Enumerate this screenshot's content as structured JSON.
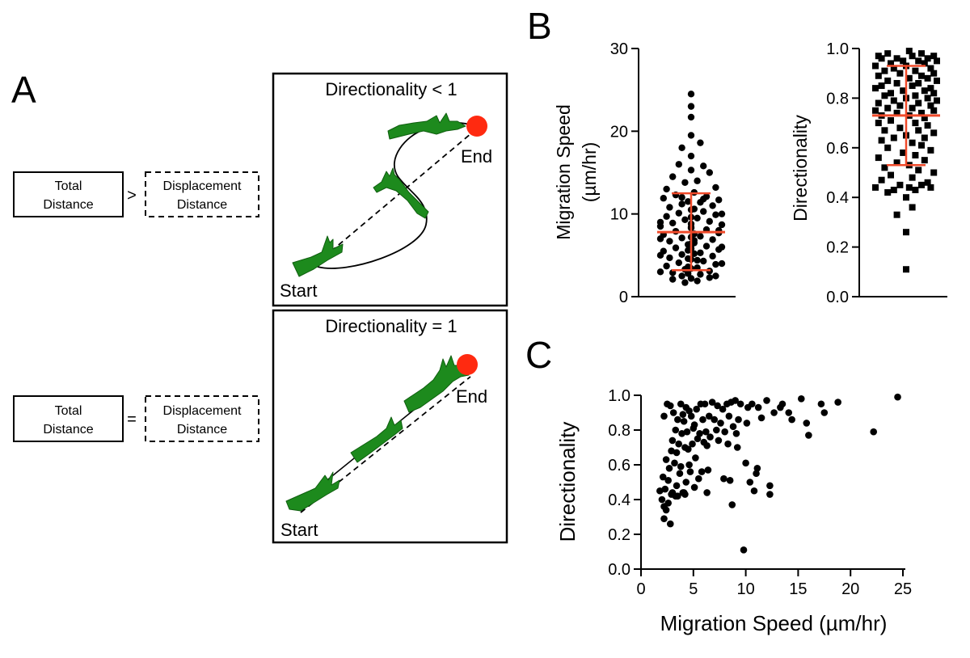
{
  "panels": {
    "a": "A",
    "b": "B",
    "c": "C"
  },
  "schematic": {
    "top": {
      "title": "Directionality < 1",
      "start": "Start",
      "end": "End",
      "left_box": [
        "Total",
        "Distance"
      ],
      "operator": ">",
      "right_box": [
        "Displacement",
        "Distance"
      ]
    },
    "bottom": {
      "title": "Directionality = 1",
      "start": "Start",
      "end": "End",
      "left_box": [
        "Total",
        "Distance"
      ],
      "operator": "=",
      "right_box": [
        "Displacement",
        "Distance"
      ]
    }
  },
  "colors": {
    "cell": "#1d8a1d",
    "cell_stroke": "#0f5e0f",
    "end_dot": "#ff2a10",
    "error_bar": "#f04a2a",
    "points": "#000000"
  },
  "chart_data": [
    {
      "id": "speed",
      "type": "scatter",
      "subtype": "dot-plot",
      "ylabel": [
        "Migration Speed",
        "(µm/hr)"
      ],
      "ylim": [
        0,
        30
      ],
      "yticks": [
        0,
        10,
        20,
        30
      ],
      "yticklabels": [
        "0",
        "10",
        "20",
        "30"
      ],
      "marker": "circle",
      "summary": {
        "mean": 7.8,
        "sd_upper": 12.5,
        "sd_lower": 3.2
      },
      "values": [
        24.5,
        23.0,
        21.7,
        19.5,
        18.6,
        18.0,
        17.0,
        16.0,
        15.8,
        15.3,
        15.0,
        14.5,
        14.0,
        13.8,
        13.2,
        13.0,
        12.6,
        12.3,
        12.1,
        11.9,
        11.7,
        11.4,
        11.2,
        11.0,
        10.8,
        10.5,
        10.3,
        10.1,
        9.9,
        9.7,
        9.5,
        9.3,
        9.1,
        8.9,
        8.7,
        8.5,
        8.3,
        8.1,
        7.9,
        7.7,
        7.5,
        7.3,
        7.1,
        6.9,
        6.7,
        6.5,
        6.3,
        6.1,
        5.9,
        5.7,
        5.5,
        5.3,
        5.1,
        4.9,
        4.7,
        4.5,
        4.3,
        4.1,
        3.9,
        3.7,
        3.5,
        3.3,
        3.1,
        2.9,
        2.7,
        2.5,
        2.3,
        2.1,
        1.9,
        1.7,
        11.5,
        10.0,
        9.0,
        8.0,
        7.0,
        6.0,
        5.0,
        4.0,
        3.0,
        2.5,
        9.6,
        8.4,
        7.6,
        6.4,
        5.6,
        4.4,
        3.6,
        10.6,
        11.8,
        12.0,
        6.8,
        5.2,
        4.6,
        3.4,
        2.8,
        2.2,
        8.8,
        7.2,
        6.2,
        5.8
      ],
      "offsets": [
        0,
        0,
        0,
        0,
        0.3,
        -0.3,
        0,
        -0.4,
        0.4,
        0,
        0.6,
        -0.6,
        0.2,
        -0.2,
        0.8,
        -0.8,
        0.1,
        -0.5,
        0.5,
        -0.9,
        0.9,
        0.3,
        -0.3,
        0.7,
        -0.7,
        0.0,
        0.4,
        -0.4,
        0.8,
        -0.8,
        0.2,
        -0.2,
        0.6,
        -0.6,
        1.0,
        -1.0,
        0.0,
        0.5,
        -0.5,
        0.9,
        -0.9,
        0.3,
        -0.3,
        0.7,
        -0.7,
        0.1,
        -0.1,
        0.5,
        -0.5,
        0.9,
        -0.9,
        0.3,
        -0.3,
        0.7,
        -0.7,
        0.0,
        0.4,
        -0.4,
        0.8,
        -0.8,
        0.2,
        -0.2,
        0.6,
        -0.6,
        0.3,
        -0.3,
        0.6,
        -0.6,
        0.2,
        -0.2,
        -0.1,
        1.0,
        -1.0,
        0.9,
        -1.0,
        1.0,
        -1.0,
        1.0,
        -1.0,
        0.8,
        0.0,
        0.0,
        0.1,
        0.0,
        -0.1,
        0.2,
        -0.1,
        0.1,
        0.4,
        -0.3,
        0.1,
        0.1,
        -0.1,
        0.0,
        -0.1,
        0.0,
        0.0,
        0.0,
        0.0,
        0.0
      ]
    },
    {
      "id": "directionality",
      "type": "scatter",
      "subtype": "dot-plot",
      "ylabel": [
        "Directionality"
      ],
      "ylim": [
        0,
        1
      ],
      "yticks": [
        0,
        0.2,
        0.4,
        0.6,
        0.8,
        1.0
      ],
      "yticklabels": [
        "0.0",
        "0.2",
        "0.4",
        "0.6",
        "0.8",
        "1.0"
      ],
      "marker": "square",
      "summary": {
        "mean": 0.73,
        "sd_upper": 0.93,
        "sd_lower": 0.53
      },
      "values": [
        0.99,
        0.98,
        0.98,
        0.97,
        0.97,
        0.97,
        0.96,
        0.96,
        0.96,
        0.95,
        0.95,
        0.95,
        0.94,
        0.94,
        0.93,
        0.93,
        0.92,
        0.92,
        0.91,
        0.91,
        0.9,
        0.9,
        0.89,
        0.89,
        0.88,
        0.88,
        0.87,
        0.87,
        0.86,
        0.86,
        0.85,
        0.85,
        0.84,
        0.84,
        0.83,
        0.83,
        0.82,
        0.82,
        0.81,
        0.81,
        0.8,
        0.8,
        0.79,
        0.79,
        0.78,
        0.78,
        0.77,
        0.77,
        0.76,
        0.76,
        0.75,
        0.75,
        0.74,
        0.74,
        0.73,
        0.73,
        0.72,
        0.71,
        0.7,
        0.7,
        0.69,
        0.68,
        0.67,
        0.67,
        0.66,
        0.65,
        0.64,
        0.64,
        0.63,
        0.62,
        0.61,
        0.6,
        0.59,
        0.58,
        0.57,
        0.56,
        0.55,
        0.54,
        0.53,
        0.52,
        0.51,
        0.5,
        0.49,
        0.48,
        0.47,
        0.46,
        0.45,
        0.45,
        0.44,
        0.44,
        0.44,
        0.43,
        0.43,
        0.42,
        0.4,
        0.36,
        0.33,
        0.26,
        0.11
      ],
      "offsets": [
        0.1,
        -0.6,
        0.5,
        0.9,
        -0.9,
        0.2,
        -0.3,
        0.7,
        -0.8,
        0.4,
        -0.1,
        1.0,
        -0.5,
        0.6,
        -1.0,
        0.0,
        0.8,
        -0.4,
        0.3,
        -0.7,
        0.9,
        -0.2,
        0.5,
        -0.9,
        0.1,
        0.7,
        -0.6,
        1.0,
        -0.3,
        0.4,
        -0.8,
        0.2,
        0.8,
        -1.0,
        -0.1,
        0.6,
        -0.5,
        0.9,
        0.3,
        -0.7,
        0.0,
        0.7,
        -0.4,
        1.0,
        -0.9,
        0.4,
        -0.2,
        0.8,
        -0.6,
        0.2,
        0.9,
        -1.0,
        0.5,
        -0.3,
        0.1,
        -0.8,
        0.6,
        -0.5,
        0.3,
        -0.9,
        0.7,
        -0.2,
        0.4,
        -0.7,
        0.9,
        0.0,
        -0.4,
        0.6,
        -0.8,
        0.2,
        0.5,
        -0.6,
        0.8,
        -0.1,
        0.3,
        -0.9,
        0.6,
        -0.3,
        0.1,
        -0.7,
        0.4,
        0.9,
        -0.5,
        0.2,
        -0.8,
        0.7,
        -0.2,
        0.5,
        -1.0,
        0.1,
        0.8,
        -0.4,
        0.3,
        -0.6,
        0.0,
        0.2,
        -0.3,
        0.0,
        0.0
      ]
    },
    {
      "id": "speed-vs-directionality",
      "type": "scatter",
      "xlabel": "Migration Speed (µm/hr)",
      "ylabel": "Directionality",
      "xlim": [
        0,
        25
      ],
      "ylim": [
        0,
        1
      ],
      "xticks": [
        0,
        5,
        10,
        15,
        20,
        25
      ],
      "xticklabels": [
        "0",
        "5",
        "10",
        "15",
        "20",
        "25"
      ],
      "yticks": [
        0,
        0.2,
        0.4,
        0.6,
        0.8,
        1.0
      ],
      "yticklabels": [
        "0.0",
        "0.2",
        "0.4",
        "0.6",
        "0.8",
        "1.0"
      ],
      "x": [
        24.5,
        18.8,
        15.3,
        17.2,
        12.0,
        13.5,
        14.1,
        17.5,
        15.8,
        22.2,
        16.0,
        12.3,
        10.8,
        2.5,
        2.8,
        3.8,
        4.3,
        4.0,
        4.6,
        5.3,
        5.7,
        6.1,
        6.8,
        7.3,
        7.8,
        8.2,
        8.6,
        9.0,
        9.5,
        10.2,
        10.6,
        11.2,
        12.7,
        13.3,
        2.2,
        3.1,
        3.5,
        4.1,
        4.8,
        5.1,
        5.9,
        6.5,
        7.0,
        7.6,
        8.4,
        8.8,
        9.3,
        10.1,
        11.5,
        14.4,
        3.3,
        3.9,
        4.4,
        5.0,
        5.6,
        6.2,
        7.2,
        8.0,
        9.1,
        3.0,
        3.6,
        4.2,
        4.9,
        5.4,
        6.0,
        6.6,
        7.4,
        8.3,
        9.2,
        2.9,
        3.4,
        4.5,
        5.2,
        6.3,
        2.4,
        3.2,
        3.8,
        4.6,
        5.8,
        7.9,
        10.0,
        11.0,
        2.7,
        3.7,
        4.7,
        5.5,
        6.4,
        2.1,
        2.6,
        3.4,
        4.3,
        5.1,
        10.4,
        1.8,
        2.3,
        2.9,
        3.5,
        4.0,
        2.0,
        3.0,
        4.2,
        8.5,
        2.2,
        2.6,
        3.3,
        4.1,
        6.3,
        11.1,
        12.3,
        2.4,
        8.7,
        2.2,
        2.8,
        9.8
      ],
      "y": [
        0.99,
        0.96,
        0.98,
        0.95,
        0.97,
        0.95,
        0.9,
        0.9,
        0.84,
        0.79,
        0.77,
        0.43,
        0.45,
        0.95,
        0.94,
        0.95,
        0.93,
        0.89,
        0.91,
        0.92,
        0.95,
        0.95,
        0.96,
        0.94,
        0.92,
        0.95,
        0.96,
        0.97,
        0.95,
        0.93,
        0.95,
        0.93,
        0.9,
        0.93,
        0.88,
        0.9,
        0.86,
        0.85,
        0.88,
        0.83,
        0.86,
        0.88,
        0.86,
        0.84,
        0.88,
        0.82,
        0.86,
        0.84,
        0.87,
        0.86,
        0.8,
        0.78,
        0.79,
        0.81,
        0.78,
        0.79,
        0.8,
        0.79,
        0.78,
        0.74,
        0.72,
        0.7,
        0.72,
        0.75,
        0.73,
        0.76,
        0.74,
        0.72,
        0.7,
        0.68,
        0.67,
        0.69,
        0.64,
        0.71,
        0.63,
        0.61,
        0.59,
        0.6,
        0.56,
        0.52,
        0.61,
        0.55,
        0.58,
        0.55,
        0.56,
        0.52,
        0.57,
        0.53,
        0.51,
        0.48,
        0.5,
        0.47,
        0.5,
        0.45,
        0.46,
        0.43,
        0.42,
        0.44,
        0.4,
        0.44,
        0.43,
        0.51,
        0.36,
        0.38,
        0.42,
        0.44,
        0.44,
        0.58,
        0.48,
        0.34,
        0.37,
        0.29,
        0.26,
        0.11
      ]
    }
  ]
}
